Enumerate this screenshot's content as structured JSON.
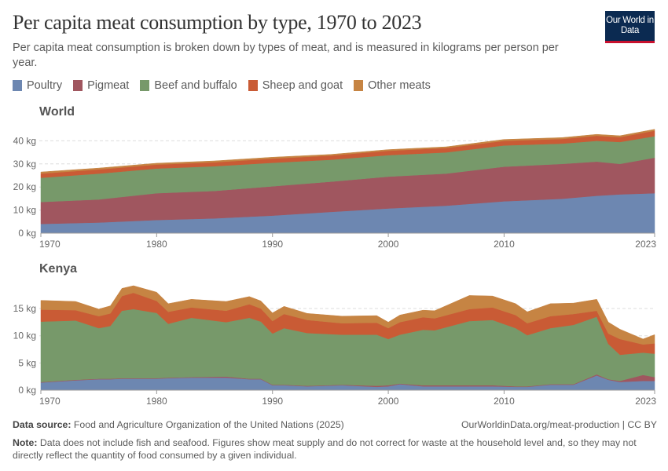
{
  "header": {
    "title": "Per capita meat consumption by type, 1970 to 2023",
    "subtitle": "Per capita meat consumption is broken down by types of meat, and is measured in kilograms per person per year.",
    "logo": "Our World in Data"
  },
  "legend": [
    {
      "label": "Poultry",
      "color": "#6d87b1"
    },
    {
      "label": "Pigmeat",
      "color": "#a0565f"
    },
    {
      "label": "Beef and buffalo",
      "color": "#77996a"
    },
    {
      "label": "Sheep and goat",
      "color": "#c95b35"
    },
    {
      "label": "Other meats",
      "color": "#c68443"
    }
  ],
  "chart_data": [
    {
      "type": "area",
      "stacked": true,
      "title": "World",
      "ylim": [
        0,
        50
      ],
      "yticks": [
        0,
        10,
        20,
        30,
        40
      ],
      "ytick_labels": [
        "0 kg",
        "10 kg",
        "20 kg",
        "30 kg",
        "40 kg"
      ],
      "xticks": [
        1970,
        1980,
        1990,
        2000,
        2010,
        2023
      ],
      "grid": true,
      "x": [
        1970,
        1975,
        1980,
        1985,
        1990,
        1995,
        2000,
        2005,
        2010,
        2015,
        2018,
        2020,
        2023
      ],
      "series": [
        {
          "name": "Poultry",
          "values": [
            4.0,
            4.6,
            5.7,
            6.4,
            7.6,
            9.2,
            10.7,
            11.9,
            13.8,
            14.9,
            16.2,
            16.8,
            17.3
          ]
        },
        {
          "name": "Pigmeat",
          "values": [
            9.5,
            10.0,
            11.6,
            11.9,
            12.7,
            13.1,
            13.8,
            13.9,
            15.0,
            15.1,
            14.8,
            13.2,
            15.4
          ]
        },
        {
          "name": "Beef and buffalo",
          "values": [
            10.5,
            11.2,
            10.7,
            10.7,
            10.2,
            9.5,
            9.3,
            9.2,
            9.2,
            8.8,
            9.0,
            9.5,
            9.3
          ]
        },
        {
          "name": "Sheep and goat",
          "values": [
            1.8,
            1.8,
            1.7,
            1.7,
            1.8,
            1.8,
            1.9,
            1.9,
            2.0,
            2.0,
            2.2,
            2.1,
            2.4
          ]
        },
        {
          "name": "Other meats",
          "values": [
            0.7,
            0.6,
            0.6,
            0.6,
            0.6,
            0.5,
            0.5,
            0.5,
            0.6,
            0.6,
            0.6,
            0.6,
            0.6
          ]
        }
      ]
    },
    {
      "type": "area",
      "stacked": true,
      "title": "Kenya",
      "ylim": [
        0,
        20
      ],
      "yticks": [
        0,
        5,
        10,
        15
      ],
      "ytick_labels": [
        "0 kg",
        "5 kg",
        "10 kg",
        "15 kg"
      ],
      "xticks": [
        1970,
        1980,
        1990,
        2000,
        2010,
        2023
      ],
      "grid": true,
      "x": [
        1970,
        1973,
        1975,
        1976,
        1977,
        1978,
        1980,
        1981,
        1983,
        1986,
        1988,
        1989,
        1990,
        1991,
        1993,
        1996,
        1999,
        2000,
        2001,
        2003,
        2004,
        2007,
        2009,
        2011,
        2012,
        2014,
        2016,
        2018,
        2019,
        2020,
        2022,
        2023
      ],
      "series": [
        {
          "name": "Poultry",
          "values": [
            1.4,
            1.8,
            2.0,
            2.0,
            2.1,
            2.1,
            2.1,
            2.2,
            2.3,
            2.3,
            2.0,
            2.0,
            0.9,
            0.9,
            0.7,
            0.9,
            0.6,
            0.7,
            1.1,
            0.7,
            0.7,
            0.7,
            0.7,
            0.6,
            0.6,
            1.0,
            1.0,
            2.7,
            1.9,
            1.5,
            1.7,
            1.7
          ]
        },
        {
          "name": "Pigmeat",
          "values": [
            0.1,
            0.1,
            0.1,
            0.1,
            0.1,
            0.1,
            0.1,
            0.1,
            0.1,
            0.2,
            0.1,
            0.1,
            0.1,
            0.1,
            0.1,
            0.1,
            0.2,
            0.2,
            0.1,
            0.2,
            0.2,
            0.2,
            0.2,
            0.1,
            0.1,
            0.1,
            0.1,
            0.2,
            0.1,
            0.2,
            1.1,
            0.7
          ]
        },
        {
          "name": "Beef and buffalo",
          "values": [
            11.1,
            10.9,
            9.3,
            9.7,
            12.4,
            12.7,
            12.0,
            9.9,
            10.9,
            10.0,
            11.2,
            10.5,
            9.4,
            10.4,
            9.7,
            9.2,
            9.4,
            8.5,
            9.0,
            10.2,
            10.1,
            11.8,
            12.0,
            10.7,
            9.4,
            10.3,
            10.9,
            10.6,
            6.5,
            4.8,
            4.1,
            4.3
          ]
        },
        {
          "name": "Sheep and goat",
          "values": [
            2.2,
            1.9,
            2.2,
            2.3,
            2.7,
            3.0,
            2.2,
            2.2,
            1.9,
            2.1,
            2.5,
            2.4,
            2.3,
            2.6,
            2.4,
            2.1,
            2.2,
            2.0,
            2.3,
            2.3,
            2.2,
            2.2,
            2.3,
            2.4,
            2.2,
            2.2,
            2.0,
            1.1,
            1.9,
            2.9,
            1.5,
            1.9
          ]
        },
        {
          "name": "Other meats",
          "values": [
            1.7,
            1.6,
            1.3,
            1.4,
            1.4,
            1.3,
            1.6,
            1.5,
            1.5,
            1.7,
            1.4,
            1.4,
            1.5,
            1.4,
            1.2,
            1.3,
            1.3,
            1.1,
            1.3,
            1.3,
            1.4,
            2.5,
            2.1,
            2.1,
            2.1,
            2.3,
            2.0,
            2.1,
            2.1,
            1.8,
            1.0,
            1.6
          ]
        }
      ]
    }
  ],
  "footer": {
    "source_label": "Data source:",
    "source_text": "Food and Agriculture Organization of the United Nations (2025)",
    "url": "OurWorldinData.org/meat-production | CC BY",
    "note_label": "Note:",
    "note_text": "Data does not include fish and seafood. Figures show meat supply and do not correct for waste at the household level and, so they may not directly reflect the quantity of food consumed by a given individual."
  }
}
